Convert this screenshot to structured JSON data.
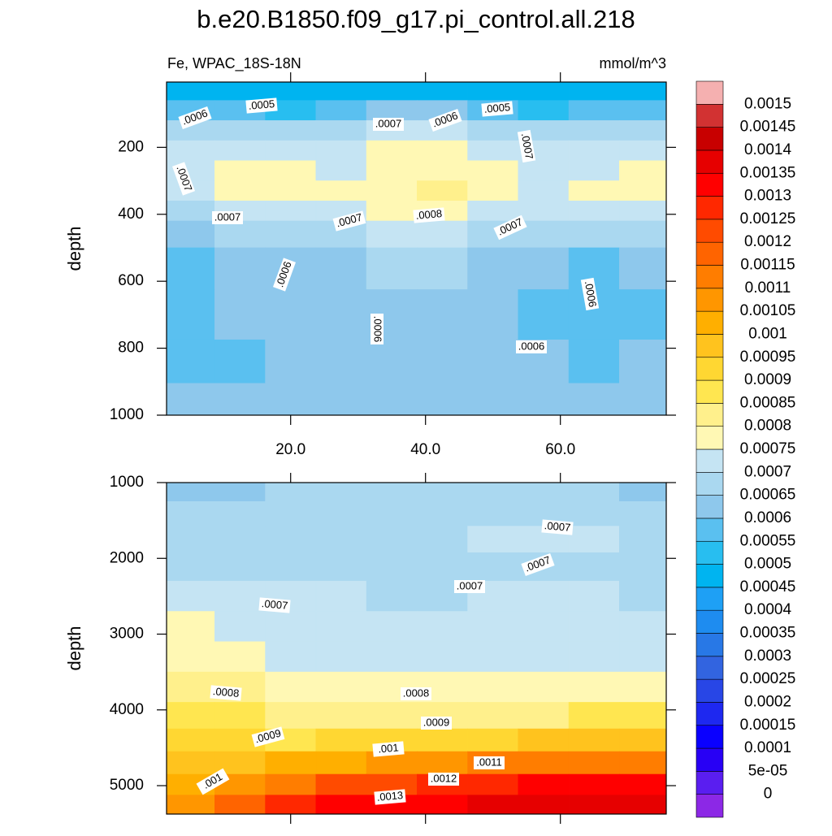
{
  "chart_data": [
    {
      "type": "contour",
      "title": "b.e20.B1850.f09_g17.pi_control.all.218",
      "left_label": "Fe, WPAC_18S-18N",
      "right_label": "mmol/m^3",
      "y_label": "depth",
      "xlim": [
        1.6,
        75.7
      ],
      "ylim": [
        5,
        1000
      ],
      "xticks": [
        {
          "value": 20,
          "label": "20.0"
        },
        {
          "value": 40,
          "label": "40.0"
        },
        {
          "value": 60,
          "label": "60.0"
        }
      ],
      "yticks": [
        200,
        400,
        600,
        800,
        1000
      ],
      "x": [
        5,
        12.5,
        20,
        27.5,
        35,
        42.5,
        50,
        57.5,
        65,
        72.5
      ],
      "y": [
        30,
        90,
        150,
        210,
        270,
        330,
        390,
        450,
        550,
        700,
        850,
        960
      ],
      "z": [
        [
          0.00048,
          0.00047,
          0.00047,
          0.00048,
          0.00049,
          0.00048,
          0.00047,
          0.00047,
          0.00048,
          0.00047
        ],
        [
          0.00058,
          0.00056,
          0.00054,
          0.00058,
          0.00062,
          0.0006,
          0.00056,
          0.00054,
          0.00057,
          0.00056
        ],
        [
          0.00068,
          0.00066,
          0.00066,
          0.00068,
          0.00071,
          0.0007,
          0.00068,
          0.00066,
          0.00068,
          0.00067
        ],
        [
          0.00072,
          0.00074,
          0.00073,
          0.00072,
          0.00077,
          0.00076,
          0.00073,
          0.00072,
          0.00074,
          0.00073
        ],
        [
          0.00071,
          0.00076,
          0.00076,
          0.00074,
          0.00079,
          0.00079,
          0.00076,
          0.00074,
          0.00073,
          0.00076
        ],
        [
          0.0007,
          0.00077,
          0.00077,
          0.00076,
          0.00079,
          0.00081,
          0.00077,
          0.00073,
          0.00076,
          0.00076
        ],
        [
          0.00068,
          0.00071,
          0.00073,
          0.00074,
          0.00077,
          0.00077,
          0.00074,
          0.00072,
          0.00071,
          0.00072
        ],
        [
          0.00064,
          0.00068,
          0.00068,
          0.00068,
          0.00071,
          0.00072,
          0.00069,
          0.00068,
          0.00066,
          0.00066
        ],
        [
          0.00058,
          0.00063,
          0.00064,
          0.00064,
          0.00065,
          0.00066,
          0.00064,
          0.00062,
          0.00059,
          0.00061
        ],
        [
          0.00057,
          0.00061,
          0.00062,
          0.00062,
          0.00061,
          0.00061,
          0.0006,
          0.00059,
          0.00058,
          0.00059
        ],
        [
          0.00058,
          0.00059,
          0.0006,
          0.00061,
          0.00061,
          0.0006,
          0.00061,
          0.00061,
          0.00059,
          0.00061
        ],
        [
          0.00061,
          0.0006,
          0.0006,
          0.00061,
          0.00061,
          0.00061,
          0.00061,
          0.00061,
          0.0006,
          0.00061
        ]
      ],
      "contour_labels": [
        ".0006",
        ".0005",
        ".0007",
        ".0006",
        ".0005",
        ".0007",
        ".0007",
        ".0007",
        ".0007",
        ".0008",
        ".0007",
        ".0006",
        ".0006",
        ".0006",
        ".0006"
      ]
    },
    {
      "type": "contour",
      "y_label": "depth",
      "xlim": [
        1.6,
        75.7
      ],
      "ylim": [
        1000,
        5375
      ],
      "xticks": [
        20,
        40,
        60
      ],
      "yticks": [
        1000,
        2000,
        3000,
        4000,
        5000
      ],
      "x": [
        5,
        12.5,
        20,
        27.5,
        35,
        42.5,
        50,
        57.5,
        65,
        72.5
      ],
      "y": [
        1100,
        1400,
        1750,
        2100,
        2500,
        2900,
        3300,
        3700,
        4100,
        4400,
        4700,
        5000,
        5250
      ],
      "z": [
        [
          0.00062,
          0.00064,
          0.00065,
          0.00066,
          0.00066,
          0.00067,
          0.00066,
          0.00066,
          0.00065,
          0.00064
        ],
        [
          0.00066,
          0.00067,
          0.00067,
          0.00068,
          0.00068,
          0.00068,
          0.00069,
          0.00068,
          0.00068,
          0.00068
        ],
        [
          0.00068,
          0.00068,
          0.00068,
          0.00068,
          0.00069,
          0.00069,
          0.00071,
          0.00071,
          0.00071,
          0.00069
        ],
        [
          0.00069,
          0.00069,
          0.00068,
          0.00068,
          0.00069,
          0.00069,
          0.00069,
          0.00069,
          0.00069,
          0.00068
        ],
        [
          0.00072,
          0.00071,
          0.0007,
          0.0007,
          0.00069,
          0.00069,
          0.0007,
          0.0007,
          0.0007,
          0.00069
        ],
        [
          0.00075,
          0.00073,
          0.00072,
          0.00071,
          0.00071,
          0.00071,
          0.00071,
          0.00071,
          0.00071,
          0.00071
        ],
        [
          0.00079,
          0.00076,
          0.00074,
          0.00073,
          0.00072,
          0.00072,
          0.00072,
          0.00072,
          0.00072,
          0.00072
        ],
        [
          0.00083,
          0.0008,
          0.00078,
          0.00076,
          0.00076,
          0.00076,
          0.00076,
          0.00076,
          0.00077,
          0.00078
        ],
        [
          0.00088,
          0.00085,
          0.00083,
          0.00082,
          0.00082,
          0.00083,
          0.00083,
          0.00084,
          0.00085,
          0.00086
        ],
        [
          0.00093,
          0.0009,
          0.00089,
          0.0009,
          0.00092,
          0.00093,
          0.00094,
          0.00095,
          0.00096,
          0.00097
        ],
        [
          0.00098,
          0.00099,
          0.001,
          0.00103,
          0.00106,
          0.00108,
          0.0011,
          0.00112,
          0.00113,
          0.00114
        ],
        [
          0.00103,
          0.00108,
          0.00114,
          0.0012,
          0.00124,
          0.00127,
          0.00129,
          0.0013,
          0.0013,
          0.0013
        ],
        [
          0.00108,
          0.00117,
          0.00125,
          0.0013,
          0.00133,
          0.00134,
          0.00135,
          0.00136,
          0.00135,
          0.00136
        ]
      ],
      "contour_labels": [
        ".0007",
        ".0007",
        ".0007",
        ".0007",
        ".0008",
        ".0008",
        ".0009",
        ".0009",
        ".001",
        ".0011",
        ".001",
        ".0012",
        ".0013"
      ]
    }
  ],
  "colorbar": {
    "levels": [
      0,
      {
        "value": 5e-05,
        "label": "5e-05"
      },
      0.0001,
      0.00015,
      0.0002,
      0.00025,
      0.0003,
      0.00035,
      0.0004,
      0.00045,
      0.0005,
      0.00055,
      0.0006,
      0.00065,
      0.0007,
      0.00075,
      0.0008,
      0.00085,
      0.0009,
      0.00095,
      0.001,
      0.00105,
      0.0011,
      0.00115,
      0.0012,
      0.00125,
      0.0013,
      0.00135,
      0.0014,
      0.00145,
      0.0015
    ],
    "colors": [
      "#8c28e6",
      "#5a1ef0",
      "#2800f5",
      "#0a00ff",
      "#1e28f0",
      "#2846e6",
      "#3264e0",
      "#2878e6",
      "#1e8cf0",
      "#1ea0f5",
      "#00b4f0",
      "#28bef0",
      "#5ac0f0",
      "#8ec8ec",
      "#aad8f0",
      "#c5e4f3",
      "#fff8b4",
      "#fff08c",
      "#ffe650",
      "#ffd732",
      "#ffc31e",
      "#ffaf00",
      "#ff9600",
      "#ff7d00",
      "#ff6400",
      "#ff4b00",
      "#ff2800",
      "#ff0000",
      "#e60000",
      "#c80000",
      "#d23232",
      "#f5b0b0"
    ]
  }
}
